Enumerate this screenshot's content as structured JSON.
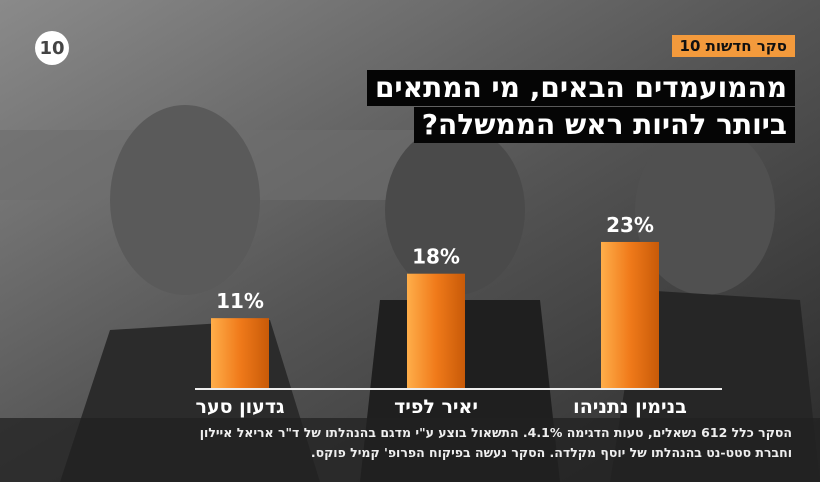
{
  "chart_data": {
    "type": "bar",
    "logo": "10",
    "badge": "סקר חדשות 10",
    "title_lines": [
      "מהמועמדים הבאים, מי המתאים",
      "ביותר להיות ראש הממשלה?"
    ],
    "categories": [
      "גדעון סער",
      "יאיר לפיד",
      "בנימין נתניהו"
    ],
    "values": [
      11,
      18,
      23
    ],
    "value_labels": [
      "11%",
      "18%",
      "23%"
    ],
    "color": "#f07a1a",
    "footnote_lines": [
      "הסקר כלל 612 נשאלים, טעות הדגימה 4.1%. התשאול בוצע ע\"י מדגם בהנהלתו של ד\"ר אריאל איילון",
      "וחברת סטט-נט בהנהלתו של יוסף מקלדה. הסקר נעשה בפיקוח הפרופ' קמיל פוקס."
    ]
  }
}
